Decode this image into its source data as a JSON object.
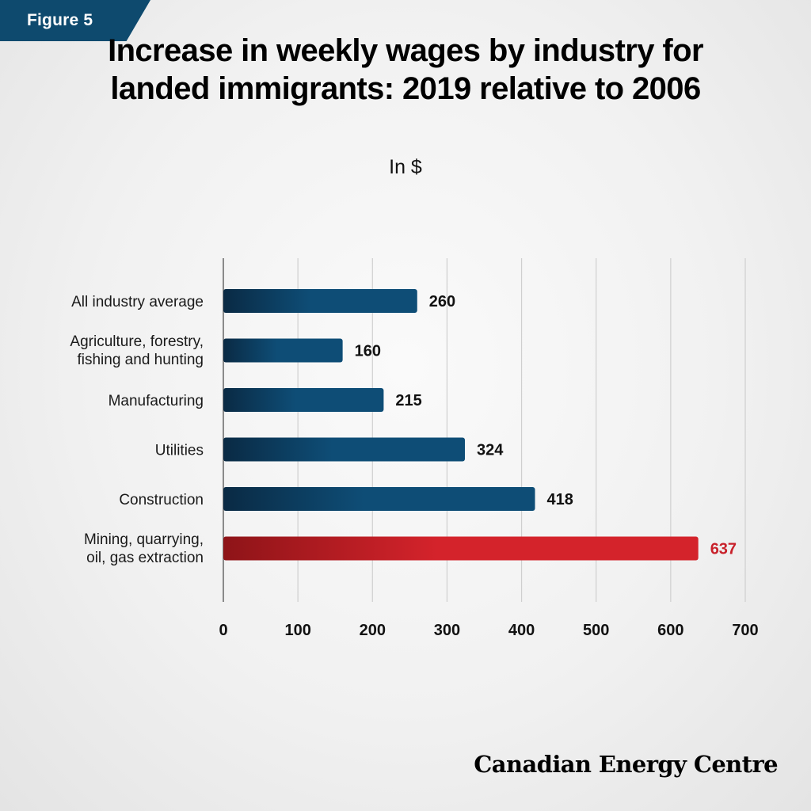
{
  "figure_badge": "Figure 5",
  "title": "Increase in weekly wages by industry for landed immigrants: 2019 relative to 2006",
  "subtitle": "In $",
  "logo": "Canadian Energy Centre",
  "colors": {
    "bar_dark": "#0a2a44",
    "bar_light": "#0e4d76",
    "highlight_dark": "#8e1418",
    "highlight_light": "#d4232b",
    "highlight_text": "#c8202a",
    "badge": "#0e4a6e"
  },
  "chart_data": {
    "type": "bar",
    "orientation": "horizontal",
    "categories": [
      "All industry average",
      "Agriculture, forestry, fishing and hunting",
      "Manufacturing",
      "Utilities",
      "Construction",
      "Mining, quarrying, oil, gas extraction"
    ],
    "category_lines": [
      [
        "All industry average"
      ],
      [
        "Agriculture, forestry,",
        "fishing and hunting"
      ],
      [
        "Manufacturing"
      ],
      [
        "Utilities"
      ],
      [
        "Construction"
      ],
      [
        "Mining, quarrying,",
        "oil, gas extraction"
      ]
    ],
    "values": [
      260,
      160,
      215,
      324,
      418,
      637
    ],
    "data_labels": [
      "260",
      "160",
      "215",
      "324",
      "418",
      "637"
    ],
    "highlight_index": 5,
    "xlim": [
      0,
      700
    ],
    "x_ticks": [
      0,
      100,
      200,
      300,
      400,
      500,
      600,
      700
    ],
    "x_tick_labels": [
      "0",
      "100",
      "200",
      "300",
      "400",
      "500",
      "600",
      "700"
    ],
    "grid": true,
    "xlabel": "",
    "ylabel": ""
  }
}
